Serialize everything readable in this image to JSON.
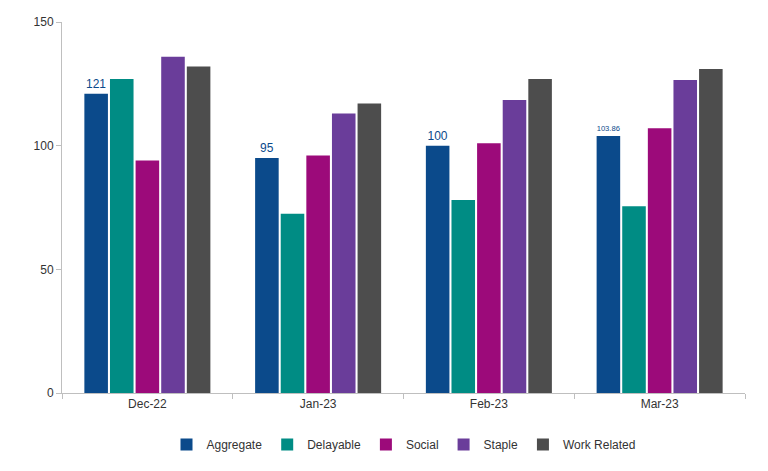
{
  "chart_data": {
    "type": "bar",
    "categories": [
      "Dec-22",
      "Jan-23",
      "Feb-23",
      "Mar-23"
    ],
    "series": [
      {
        "name": "Aggregate",
        "color": "#0b4a8b",
        "values": [
          121,
          95,
          100,
          103.86
        ],
        "data_labels": true
      },
      {
        "name": "Delayable",
        "color": "#008c84",
        "values": [
          127,
          72.5,
          78,
          75.5
        ]
      },
      {
        "name": "Social",
        "color": "#9c0a7a",
        "values": [
          94,
          96,
          101,
          107
        ]
      },
      {
        "name": "Staple",
        "color": "#6a3d9a",
        "values": [
          136,
          113,
          118.5,
          126.5
        ]
      },
      {
        "name": "Work Related",
        "color": "#4d4d4d",
        "values": [
          132,
          117,
          127,
          131
        ]
      }
    ],
    "ylim": [
      0,
      150
    ],
    "yticks": [
      0,
      50,
      100,
      150
    ],
    "grid": false,
    "legend": "bottom"
  }
}
